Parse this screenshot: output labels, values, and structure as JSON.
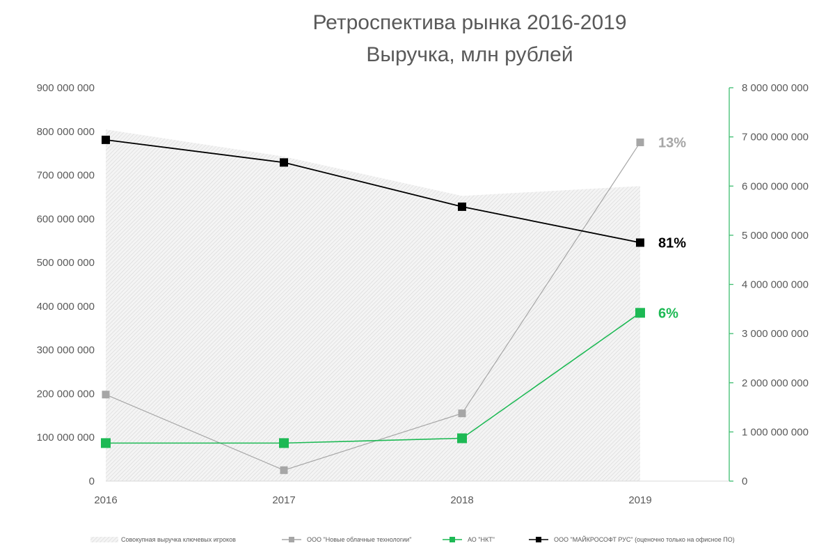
{
  "chart_data": {
    "type": "line",
    "title_lines": [
      "Ретроспектива рынка 2016-2019",
      "Выручка, млн рублей"
    ],
    "categories": [
      "2016",
      "2017",
      "2018",
      "2019"
    ],
    "left_axis": {
      "min": 0,
      "max": 900000000,
      "step": 100000000,
      "tick_labels": [
        "0",
        "100 000 000",
        "200 000 000",
        "300 000 000",
        "400 000 000",
        "500 000 000",
        "600 000 000",
        "700 000 000",
        "800 000 000",
        "900 000 000"
      ]
    },
    "right_axis": {
      "min": 0,
      "max": 8000000000,
      "step": 1000000000,
      "color": "#3dbd6f",
      "tick_labels": [
        "0",
        "1 000 000 000",
        "2 000 000 000",
        "3 000 000 000",
        "4 000 000 000",
        "5 000 000 000",
        "6 000 000 000",
        "7 000 000 000",
        "8 000 000 000"
      ]
    },
    "grid": false,
    "legend_position": "bottom",
    "series": [
      {
        "name": "Совокупная выручка ключевых игроков",
        "kind": "area",
        "axis": "right",
        "color": "#d9d9d9",
        "values": [
          7150000000,
          6600000000,
          5800000000,
          6000000000
        ]
      },
      {
        "name": "ООО \"Новые облачные технологии\"",
        "kind": "line",
        "axis": "left",
        "color": "#a6a6a6",
        "values": [
          198000000,
          25000000,
          155000000,
          775000000
        ],
        "end_label": "13%"
      },
      {
        "name": "АО \"НКТ\"",
        "kind": "line",
        "axis": "left",
        "color": "#1db954",
        "values": [
          87000000,
          87000000,
          98000000,
          385000000
        ],
        "end_label": "6%"
      },
      {
        "name": "ООО \"МАЙКРОСОФТ РУС\" (оценочно только на офисное ПО)",
        "kind": "line",
        "axis": "right",
        "color": "#000000",
        "values": [
          6940000000,
          6480000000,
          5580000000,
          4850000000
        ],
        "end_label": "81%"
      }
    ]
  }
}
